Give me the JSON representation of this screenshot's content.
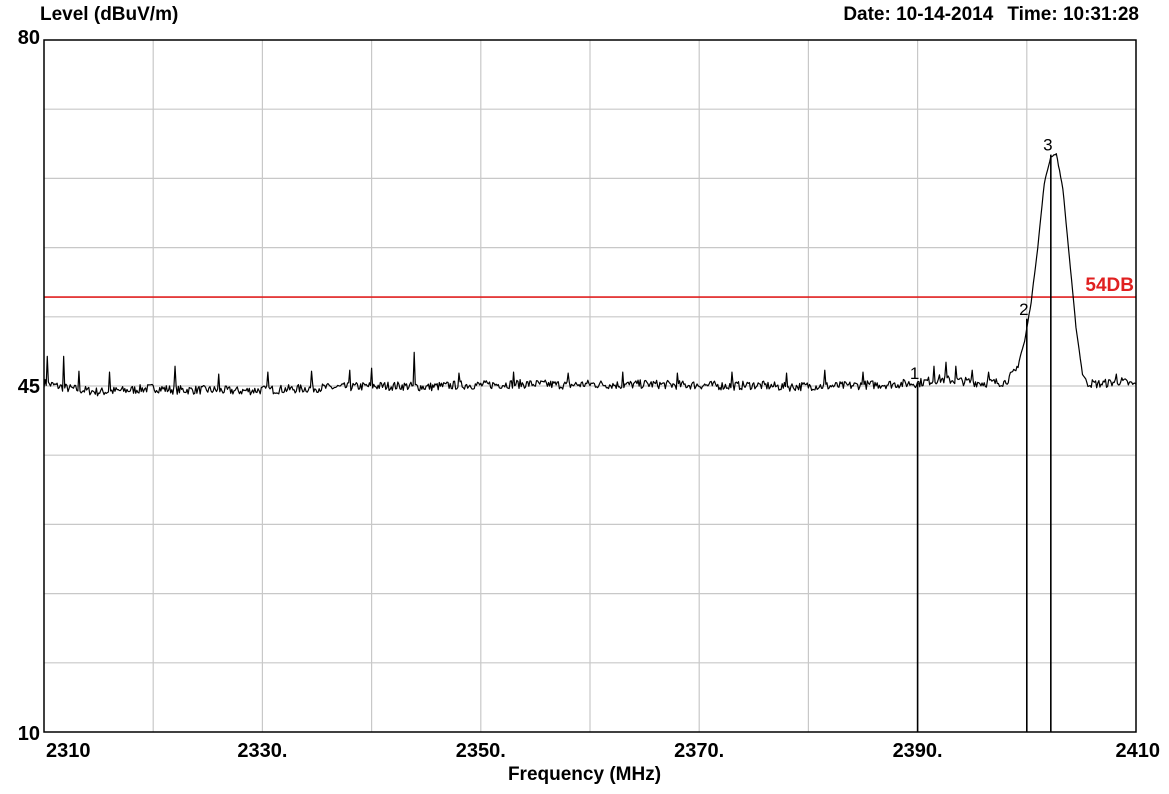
{
  "header": {
    "ylabel": "Level (dBuV/m)",
    "date_label": "Date:",
    "date": "10-14-2014",
    "time_label": "Time:",
    "time": "10:31:28"
  },
  "chart_data": {
    "type": "line",
    "xlabel": "Frequency (MHz)",
    "ylabel": "Level (dBuV/m)",
    "xlim": [
      2310,
      2410
    ],
    "ylim": [
      10,
      80
    ],
    "x_ticks": [
      {
        "value": 2310,
        "label": "2310"
      },
      {
        "value": 2330,
        "label": "2330."
      },
      {
        "value": 2350,
        "label": "2350."
      },
      {
        "value": 2370,
        "label": "2370."
      },
      {
        "value": 2390,
        "label": "2390."
      },
      {
        "value": 2410,
        "label": "2410"
      }
    ],
    "y_ticks": [
      {
        "value": 80,
        "label": "80"
      },
      {
        "value": 45,
        "label": "45"
      },
      {
        "value": 10,
        "label": "10"
      }
    ],
    "grid": true,
    "grid_x_step": 10,
    "grid_y_step": 7,
    "limit_line": {
      "value": 54,
      "label": "54DB",
      "color": "#e02020"
    },
    "trace_color": "#000000",
    "series": [
      {
        "baseline": [
          [
            2310,
            45.3
          ],
          [
            2312,
            44.8
          ],
          [
            2315,
            44.4
          ],
          [
            2318,
            44.6
          ],
          [
            2320,
            44.8
          ],
          [
            2322,
            44.6
          ],
          [
            2325,
            44.6
          ],
          [
            2328,
            44.5
          ],
          [
            2330,
            44.6
          ],
          [
            2333,
            44.7
          ],
          [
            2335,
            44.8
          ],
          [
            2338,
            44.9
          ],
          [
            2340,
            45.0
          ],
          [
            2343,
            45.0
          ],
          [
            2345,
            44.9
          ],
          [
            2348,
            45.1
          ],
          [
            2350,
            45.1
          ],
          [
            2353,
            45.2
          ],
          [
            2355,
            45.2
          ],
          [
            2358,
            45.1
          ],
          [
            2360,
            45.2
          ],
          [
            2363,
            45.1
          ],
          [
            2365,
            45.2
          ],
          [
            2368,
            45.1
          ],
          [
            2370,
            45.1
          ],
          [
            2373,
            45.0
          ],
          [
            2375,
            45.1
          ],
          [
            2378,
            44.9
          ],
          [
            2380,
            45.0
          ],
          [
            2383,
            45.0
          ],
          [
            2385,
            45.1
          ],
          [
            2388,
            45.2
          ],
          [
            2390,
            45.3
          ],
          [
            2392,
            45.7
          ],
          [
            2394,
            45.5
          ],
          [
            2396,
            45.3
          ],
          [
            2398,
            45.4
          ],
          [
            2399,
            46.5
          ],
          [
            2399.8,
            49.5
          ],
          [
            2400.4,
            53.5
          ],
          [
            2401,
            59
          ],
          [
            2401.6,
            65.5
          ],
          [
            2402.2,
            68.2
          ],
          [
            2402.7,
            68.5
          ],
          [
            2403.3,
            65
          ],
          [
            2403.9,
            58
          ],
          [
            2404.5,
            51
          ],
          [
            2405.1,
            46.2
          ],
          [
            2405.6,
            45.3
          ],
          [
            2406.5,
            45.2
          ],
          [
            2407.5,
            45.3
          ],
          [
            2408.5,
            45.5
          ],
          [
            2409.5,
            45.2
          ],
          [
            2410,
            45.1
          ]
        ],
        "spikes": [
          [
            2310.3,
            48.0
          ],
          [
            2311.8,
            48.0
          ],
          [
            2313.2,
            46.5
          ],
          [
            2316,
            46.4
          ],
          [
            2322,
            47.0
          ],
          [
            2326,
            46.2
          ],
          [
            2330.5,
            46.4
          ],
          [
            2334.5,
            46.5
          ],
          [
            2338,
            46.6
          ],
          [
            2340,
            46.8
          ],
          [
            2343.9,
            48.4
          ],
          [
            2348,
            46.3
          ],
          [
            2353,
            46.4
          ],
          [
            2358,
            46.3
          ],
          [
            2363,
            46.4
          ],
          [
            2368,
            46.3
          ],
          [
            2373,
            46.4
          ],
          [
            2378,
            46.3
          ],
          [
            2381.5,
            46.6
          ],
          [
            2385,
            46.4
          ],
          [
            2391.5,
            47.0
          ],
          [
            2392.6,
            47.4
          ],
          [
            2393.5,
            47.0
          ],
          [
            2395,
            46.6
          ],
          [
            2396.5,
            46.4
          ],
          [
            2408.2,
            46.2
          ]
        ]
      }
    ],
    "markers": [
      {
        "label": "1",
        "x": 2390.0,
        "y": 45.3
      },
      {
        "label": "2",
        "x": 2400.0,
        "y": 51.8
      },
      {
        "label": "3",
        "x": 2402.2,
        "y": 68.4
      }
    ]
  }
}
